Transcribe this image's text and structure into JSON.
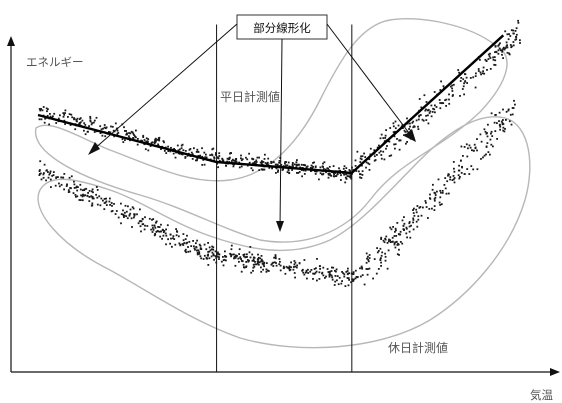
{
  "chart_data": {
    "type": "scatter",
    "title": "",
    "ylabel": "エネルギー",
    "xlabel": "気温",
    "grid": false,
    "legend": "none",
    "annotations": {
      "callout": "部分線形化",
      "weekday_label": "平日計測値",
      "holiday_label": "休日計測値"
    },
    "series": [
      {
        "name": "平日計測値",
        "cluster": "upper-band",
        "segments": [
          {
            "x": [
              0.05,
              0.38
            ],
            "y_start": [
              0.72,
              0.59
            ],
            "spread": 0.04
          },
          {
            "x": [
              0.38,
              0.63
            ],
            "y_start": [
              0.59,
              0.55
            ],
            "spread": 0.035
          },
          {
            "x": [
              0.63,
              0.94
            ],
            "y_start": [
              0.55,
              0.94
            ],
            "spread": 0.07
          }
        ]
      },
      {
        "name": "休日計測値",
        "cluster": "lower-band",
        "segments": [
          {
            "x": [
              0.05,
              0.36
            ],
            "y_start": [
              0.56,
              0.33
            ],
            "spread": 0.05
          },
          {
            "x": [
              0.36,
              0.64
            ],
            "y_start": [
              0.33,
              0.26
            ],
            "spread": 0.045
          },
          {
            "x": [
              0.64,
              0.93
            ],
            "y_start": [
              0.26,
              0.73
            ],
            "spread": 0.08
          }
        ]
      }
    ],
    "fit_lines": [
      {
        "x": 0.05,
        "y": 0.71
      },
      {
        "x": 0.38,
        "y": 0.58
      },
      {
        "x": 0.63,
        "y": 0.55
      },
      {
        "x": 0.91,
        "y": 0.93
      }
    ],
    "vertical_lines_x": [
      0.38,
      0.63
    ],
    "xlim": [
      0,
      1
    ],
    "ylim": [
      0,
      1
    ],
    "colors": {
      "points": "#1a1a1a",
      "cluster_outline": "#b7b7b7",
      "axis": "#111111",
      "fit_line": "#000000"
    }
  }
}
